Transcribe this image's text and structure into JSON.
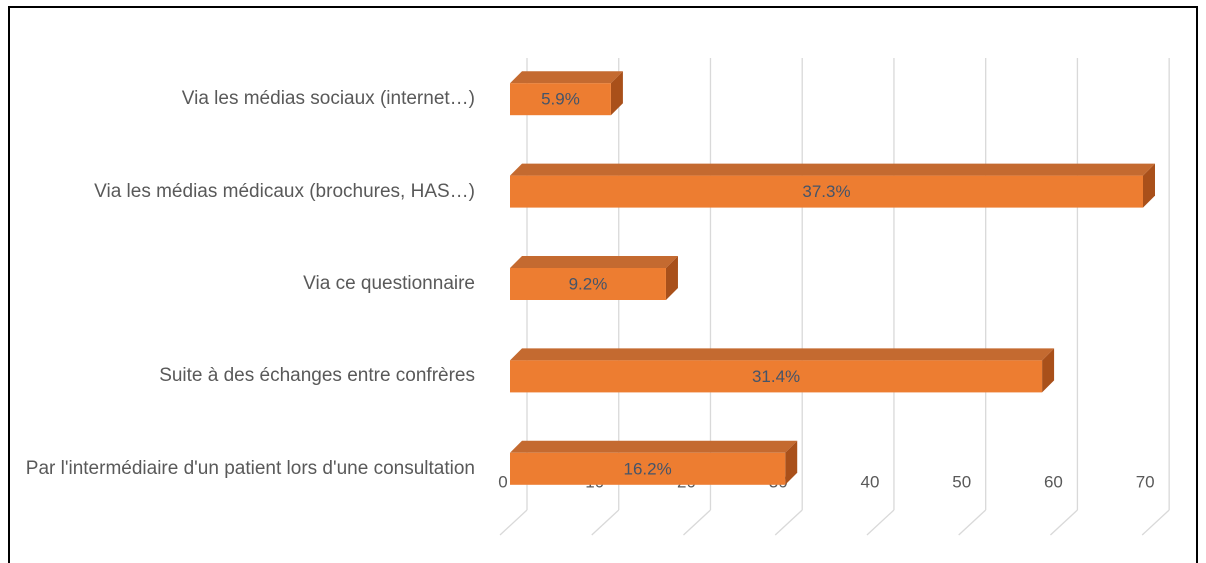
{
  "chart_data": {
    "type": "bar3d_horizontal",
    "categories": [
      "Via les médias sociaux (internet…)",
      "Via les médias médicaux (brochures, HAS…)",
      "Via ce questionnaire",
      "Suite à des échanges entre confrères",
      "Par l'intermédiaire d'un patient lors d'une consultation"
    ],
    "values": [
      11,
      69,
      17,
      58,
      30
    ],
    "value_labels": [
      "5.9%",
      "37.3%",
      "9.2%",
      "31.4%",
      "16.2%"
    ],
    "color": "#ed7d31",
    "xlim": [
      0,
      70
    ],
    "xticks": [
      0,
      10,
      20,
      30,
      40,
      50,
      60,
      70
    ],
    "grid": true
  }
}
